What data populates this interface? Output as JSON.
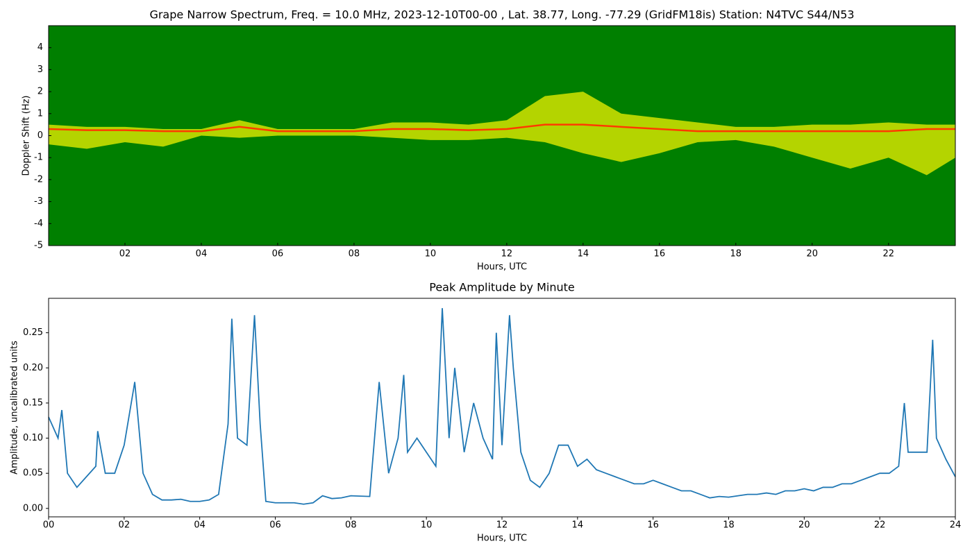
{
  "chart_data": [
    {
      "type": "spectrogram",
      "title": "Grape Narrow Spectrum, Freq. = 10.0 MHz, 2023-12-10T00-00 , Lat.  38.77, Long. -77.29 (GridFM18is) Station: N4TVC S44/N53",
      "x_label": "Hours, UTC",
      "y_label": "Doppler Shift (Hz)",
      "x": [
        0,
        1,
        2,
        3,
        4,
        5,
        6,
        7,
        8,
        9,
        10,
        11,
        12,
        13,
        14,
        15,
        16,
        17,
        18,
        19,
        20,
        21,
        22,
        23,
        23.75
      ],
      "values": [
        0.3,
        0.25,
        0.25,
        0.2,
        0.2,
        0.4,
        0.2,
        0.2,
        0.2,
        0.3,
        0.3,
        0.25,
        0.3,
        0.5,
        0.5,
        0.4,
        0.3,
        0.2,
        0.2,
        0.2,
        0.2,
        0.2,
        0.2,
        0.3,
        0.3
      ],
      "upper": [
        0.5,
        0.4,
        0.4,
        0.3,
        0.3,
        0.7,
        0.3,
        0.3,
        0.3,
        0.6,
        0.6,
        0.5,
        0.7,
        1.8,
        2.0,
        1.0,
        0.8,
        0.6,
        0.4,
        0.4,
        0.5,
        0.5,
        0.6,
        0.5,
        0.5
      ],
      "lower": [
        -0.4,
        -0.6,
        -0.3,
        -0.5,
        0,
        -0.1,
        0,
        0,
        0,
        -0.1,
        -0.2,
        -0.2,
        -0.1,
        -0.3,
        -0.8,
        -1.2,
        -0.8,
        -0.3,
        -0.2,
        -0.5,
        -1.0,
        -1.5,
        -1.0,
        -1.8,
        -1.0
      ],
      "background_color": "#007f00",
      "band_color": "#f0f000",
      "color": "#ff3a00",
      "xlim": [
        0,
        23.75
      ],
      "xticks": [
        {
          "value": 2,
          "label": "02"
        },
        {
          "value": 4,
          "label": "04"
        },
        {
          "value": 6,
          "label": "06"
        },
        {
          "value": 8,
          "label": "08"
        },
        {
          "value": 10,
          "label": "10"
        },
        {
          "value": 12,
          "label": "12"
        },
        {
          "value": 14,
          "label": "14"
        },
        {
          "value": 16,
          "label": "16"
        },
        {
          "value": 18,
          "label": "18"
        },
        {
          "value": 20,
          "label": "20"
        },
        {
          "value": 22,
          "label": "22"
        }
      ],
      "ylim": [
        -5,
        5
      ],
      "yticks": [
        -5,
        -4,
        -3,
        -2,
        -1,
        0,
        1,
        2,
        3,
        4
      ]
    },
    {
      "type": "line",
      "title": "Peak Amplitude by Minute",
      "x_label": "Hours, UTC",
      "y_label": "Amplitude, uncalibrated units",
      "color": "#1f77b4",
      "x": [
        0,
        0.25,
        0.35,
        0.5,
        0.75,
        1.0,
        1.25,
        1.3,
        1.5,
        1.75,
        2.0,
        2.25,
        2.28,
        2.5,
        2.75,
        3.0,
        3.25,
        3.5,
        3.75,
        4.0,
        4.25,
        4.5,
        4.75,
        4.85,
        5.0,
        5.25,
        5.45,
        5.6,
        5.75,
        6.0,
        6.5,
        6.75,
        7.0,
        7.25,
        7.5,
        7.75,
        8.0,
        8.5,
        8.75,
        9.0,
        9.25,
        9.4,
        9.5,
        9.75,
        10.0,
        10.25,
        10.42,
        10.6,
        10.75,
        11.0,
        11.25,
        11.5,
        11.75,
        11.85,
        12.0,
        12.2,
        12.3,
        12.5,
        12.75,
        13.0,
        13.25,
        13.5,
        13.75,
        14.0,
        14.25,
        14.5,
        14.75,
        15.0,
        15.25,
        15.5,
        15.75,
        16.0,
        16.25,
        16.5,
        16.75,
        17.0,
        17.25,
        17.5,
        17.75,
        18.0,
        18.25,
        18.5,
        18.75,
        19.0,
        19.25,
        19.5,
        19.75,
        20.0,
        20.25,
        20.5,
        20.75,
        21.0,
        21.25,
        21.5,
        21.75,
        22.0,
        22.25,
        22.5,
        22.65,
        22.75,
        23.0,
        23.25,
        23.4,
        23.5,
        23.75,
        24.0
      ],
      "values": [
        0.13,
        0.1,
        0.14,
        0.05,
        0.03,
        0.045,
        0.06,
        0.11,
        0.05,
        0.05,
        0.09,
        0.17,
        0.18,
        0.05,
        0.02,
        0.012,
        0.012,
        0.013,
        0.01,
        0.01,
        0.012,
        0.02,
        0.12,
        0.27,
        0.1,
        0.09,
        0.275,
        0.12,
        0.01,
        0.008,
        0.008,
        0.006,
        0.008,
        0.018,
        0.014,
        0.015,
        0.018,
        0.017,
        0.18,
        0.05,
        0.1,
        0.19,
        0.08,
        0.1,
        0.08,
        0.06,
        0.285,
        0.1,
        0.2,
        0.08,
        0.15,
        0.1,
        0.07,
        0.25,
        0.09,
        0.275,
        0.2,
        0.08,
        0.04,
        0.03,
        0.05,
        0.09,
        0.09,
        0.06,
        0.07,
        0.055,
        0.05,
        0.045,
        0.04,
        0.035,
        0.035,
        0.04,
        0.035,
        0.03,
        0.025,
        0.025,
        0.02,
        0.015,
        0.017,
        0.016,
        0.018,
        0.02,
        0.02,
        0.022,
        0.02,
        0.025,
        0.025,
        0.028,
        0.025,
        0.03,
        0.03,
        0.035,
        0.035,
        0.04,
        0.045,
        0.05,
        0.05,
        0.06,
        0.15,
        0.08,
        0.08,
        0.08,
        0.24,
        0.1,
        0.07,
        0.045
      ],
      "xlim": [
        0,
        24
      ],
      "xticks": [
        {
          "value": 0,
          "label": "00"
        },
        {
          "value": 2,
          "label": "02"
        },
        {
          "value": 4,
          "label": "04"
        },
        {
          "value": 6,
          "label": "06"
        },
        {
          "value": 8,
          "label": "08"
        },
        {
          "value": 10,
          "label": "10"
        },
        {
          "value": 12,
          "label": "12"
        },
        {
          "value": 14,
          "label": "14"
        },
        {
          "value": 16,
          "label": "16"
        },
        {
          "value": 18,
          "label": "18"
        },
        {
          "value": 20,
          "label": "20"
        },
        {
          "value": 22,
          "label": "22"
        },
        {
          "value": 24,
          "label": "24"
        }
      ],
      "ylim": [
        -0.012,
        0.299
      ],
      "yticks": [
        {
          "value": 0,
          "label": "0.00"
        },
        {
          "value": 0.05,
          "label": "0.05"
        },
        {
          "value": 0.1,
          "label": "0.10"
        },
        {
          "value": 0.15,
          "label": "0.15"
        },
        {
          "value": 0.2,
          "label": "0.20"
        },
        {
          "value": 0.25,
          "label": "0.25"
        }
      ]
    }
  ]
}
